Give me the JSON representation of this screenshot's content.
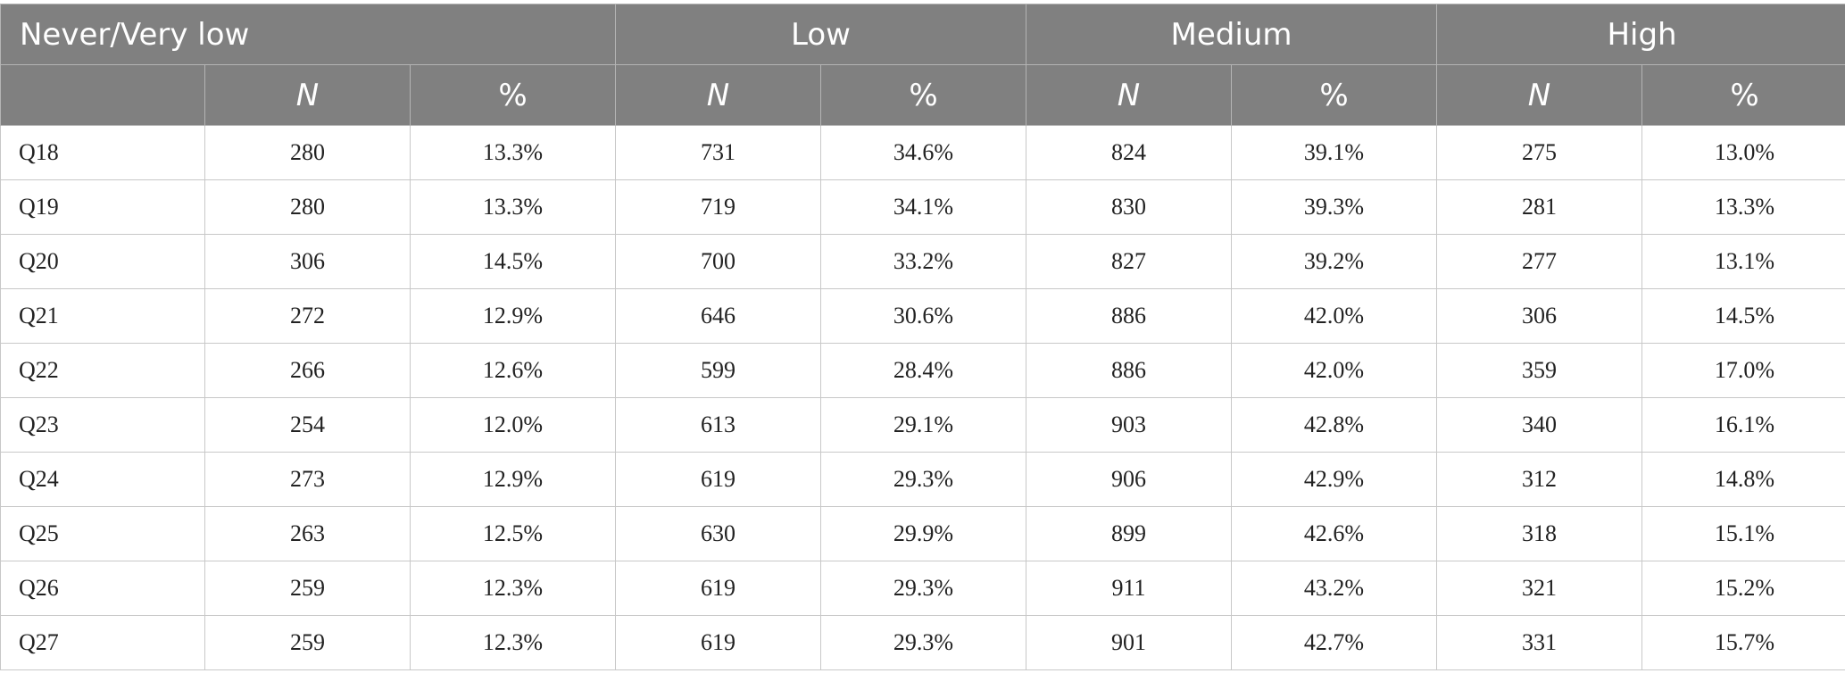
{
  "header": {
    "groups": [
      "Never/Very low",
      "Low",
      "Medium",
      "High"
    ],
    "sub": {
      "blank": "",
      "n_label": "N",
      "pct_label": "%"
    }
  },
  "rows": [
    {
      "label": "Q18",
      "vals": [
        "280",
        "13.3%",
        "731",
        "34.6%",
        "824",
        "39.1%",
        "275",
        "13.0%"
      ]
    },
    {
      "label": "Q19",
      "vals": [
        "280",
        "13.3%",
        "719",
        "34.1%",
        "830",
        "39.3%",
        "281",
        "13.3%"
      ]
    },
    {
      "label": "Q20",
      "vals": [
        "306",
        "14.5%",
        "700",
        "33.2%",
        "827",
        "39.2%",
        "277",
        "13.1%"
      ]
    },
    {
      "label": "Q21",
      "vals": [
        "272",
        "12.9%",
        "646",
        "30.6%",
        "886",
        "42.0%",
        "306",
        "14.5%"
      ]
    },
    {
      "label": "Q22",
      "vals": [
        "266",
        "12.6%",
        "599",
        "28.4%",
        "886",
        "42.0%",
        "359",
        "17.0%"
      ]
    },
    {
      "label": "Q23",
      "vals": [
        "254",
        "12.0%",
        "613",
        "29.1%",
        "903",
        "42.8%",
        "340",
        "16.1%"
      ]
    },
    {
      "label": "Q24",
      "vals": [
        "273",
        "12.9%",
        "619",
        "29.3%",
        "906",
        "42.9%",
        "312",
        "14.8%"
      ]
    },
    {
      "label": "Q25",
      "vals": [
        "263",
        "12.5%",
        "630",
        "29.9%",
        "899",
        "42.6%",
        "318",
        "15.1%"
      ]
    },
    {
      "label": "Q26",
      "vals": [
        "259",
        "12.3%",
        "619",
        "29.3%",
        "911",
        "43.2%",
        "321",
        "15.2%"
      ]
    },
    {
      "label": "Q27",
      "vals": [
        "259",
        "12.3%",
        "619",
        "29.3%",
        "901",
        "42.7%",
        "331",
        "15.7%"
      ]
    }
  ]
}
